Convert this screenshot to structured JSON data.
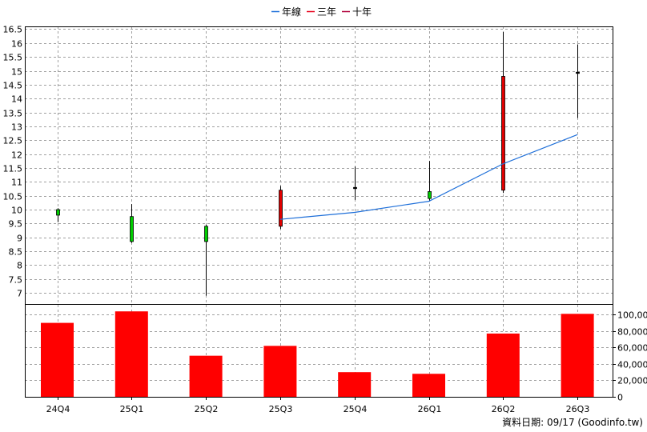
{
  "chart_data": {
    "type": "candlestick+bar",
    "legend": [
      {
        "label": "年線",
        "color": "#1e6fd9"
      },
      {
        "label": "三年",
        "color": "#e8001c"
      },
      {
        "label": "十年",
        "color": "#b0003a"
      }
    ],
    "categories": [
      "24Q4",
      "25Q1",
      "25Q2",
      "25Q3",
      "25Q4",
      "26Q1",
      "26Q2",
      "26Q3"
    ],
    "price_axis": {
      "ylim": [
        6.6,
        16.6
      ],
      "ticks": [
        "7",
        "7.5",
        "8",
        "8.5",
        "9",
        "9.5",
        "10",
        "10.5",
        "11",
        "11.5",
        "12",
        "12.5",
        "13",
        "13.5",
        "14",
        "14.5",
        "15",
        "15.5",
        "16",
        "16.5"
      ]
    },
    "volume_axis": {
      "ylim": [
        0,
        112000
      ],
      "ticks": [
        "0",
        "20,000",
        "40,000",
        "60,000",
        "80,000",
        "100,000"
      ]
    },
    "candles": [
      {
        "open": 9.8,
        "high": 10.05,
        "low": 9.55,
        "close": 10.0
      },
      {
        "open": 8.85,
        "high": 10.2,
        "low": 8.8,
        "close": 9.75
      },
      {
        "open": 8.85,
        "high": 9.45,
        "low": 6.9,
        "close": 9.4
      },
      {
        "open": 10.7,
        "high": 10.85,
        "low": 9.3,
        "close": 9.4
      },
      {
        "open": 10.8,
        "high": 11.55,
        "low": 10.35,
        "close": 10.8
      },
      {
        "open": 10.4,
        "high": 11.75,
        "low": 10.3,
        "close": 10.65
      },
      {
        "open": 14.8,
        "high": 16.4,
        "low": 10.6,
        "close": 10.7
      },
      {
        "open": 14.95,
        "high": 15.95,
        "low": 13.3,
        "close": 14.95
      }
    ],
    "series": [
      {
        "name": "年線",
        "values": [
          null,
          null,
          null,
          9.65,
          9.9,
          10.3,
          11.65,
          12.7
        ]
      }
    ],
    "volume": [
      90000,
      104000,
      50000,
      62000,
      30000,
      28000,
      77000,
      101000
    ],
    "up_color": "#00cc00",
    "down_color": "#e00000",
    "volume_color": "#ff0000",
    "grid": true
  },
  "footer": {
    "text": "資料日期: 09/17  (Goodinfo.tw)"
  }
}
